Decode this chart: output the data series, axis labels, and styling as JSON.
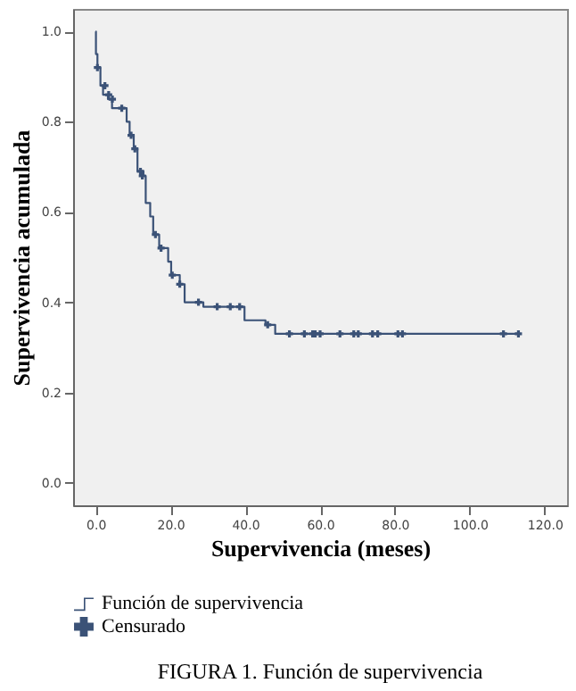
{
  "chart_data": {
    "type": "step",
    "title": "FIGURA 1. Función de supervivencia",
    "xlabel": "Supervivencia (meses)",
    "ylabel": "Supervivencia acumulada",
    "xlim": [
      -6,
      126
    ],
    "ylim": [
      -0.05,
      1.05
    ],
    "xticks": [
      {
        "value": 0,
        "label": "0.0"
      },
      {
        "value": 20,
        "label": "20.0"
      },
      {
        "value": 40,
        "label": "40.0"
      },
      {
        "value": 60,
        "label": "60.0"
      },
      {
        "value": 80,
        "label": "80.0"
      },
      {
        "value": 100,
        "label": "100.0"
      },
      {
        "value": 120,
        "label": "120.0"
      }
    ],
    "yticks": [
      {
        "value": 0,
        "label": "0.0"
      },
      {
        "value": 0.2,
        "label": "0.2"
      },
      {
        "value": 0.4,
        "label": "0.4"
      },
      {
        "value": 0.6,
        "label": "0.6"
      },
      {
        "value": 0.8,
        "label": "0.8"
      },
      {
        "value": 1.0,
        "label": "1.0"
      }
    ],
    "grid": false,
    "legend": "bottom",
    "series": [
      {
        "name": "Función de supervivencia",
        "color": "#3b5277",
        "x": [
          0,
          0.1,
          0.5,
          1.3,
          2,
          3.3,
          4.4,
          8.3,
          9.1,
          10.2,
          11.2,
          12.8,
          13.4,
          14.6,
          15.4,
          17,
          19.4,
          20.2,
          22.5,
          23.8,
          28.8,
          39.8,
          45.4,
          48,
          113
        ],
        "values": [
          1.0,
          0.95,
          0.92,
          0.88,
          0.86,
          0.85,
          0.83,
          0.8,
          0.77,
          0.74,
          0.69,
          0.68,
          0.62,
          0.59,
          0.55,
          0.52,
          0.49,
          0.46,
          0.44,
          0.4,
          0.39,
          0.36,
          0.35,
          0.33,
          0.33
        ]
      },
      {
        "name": "Censurado",
        "type": "scatter",
        "marker": "cross",
        "color": "#3b5277",
        "x": [
          0.5,
          2.5,
          3.5,
          4.5,
          7,
          9.5,
          10.5,
          12,
          12.5,
          16,
          17.5,
          20.5,
          22.5,
          27.5,
          32.5,
          36,
          38.5,
          46,
          51.8,
          55.8,
          58,
          58.7,
          60,
          65.3,
          69,
          70.2,
          74,
          75.4,
          80.8,
          82,
          109,
          113
        ],
        "values": [
          0.92,
          0.88,
          0.86,
          0.85,
          0.83,
          0.77,
          0.74,
          0.69,
          0.68,
          0.55,
          0.52,
          0.46,
          0.44,
          0.4,
          0.39,
          0.39,
          0.39,
          0.35,
          0.33,
          0.33,
          0.33,
          0.33,
          0.33,
          0.33,
          0.33,
          0.33,
          0.33,
          0.33,
          0.33,
          0.33,
          0.33,
          0.33
        ]
      }
    ]
  }
}
